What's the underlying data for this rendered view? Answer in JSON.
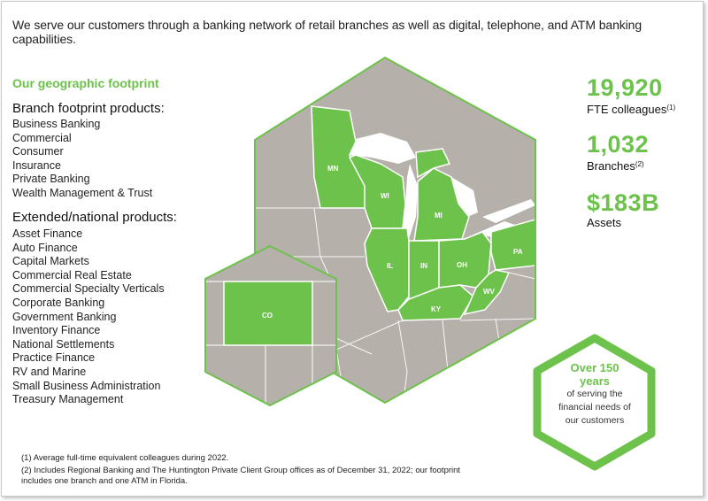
{
  "intro": "We serve our customers through a banking network of retail branches as well as digital, telephone, and ATM banking capabilities.",
  "footprint": {
    "title": "Our geographic footprint",
    "branch_heading": "Branch footprint products:",
    "branch_products": [
      "Business Banking",
      "Commercial",
      "Consumer",
      "Insurance",
      "Private Banking",
      "Wealth Management & Trust"
    ],
    "extended_heading": "Extended/national products:",
    "extended_products": [
      "Asset Finance",
      "Auto Finance",
      "Capital Markets",
      "Commercial Real Estate",
      "Commercial Specialty Verticals",
      "Corporate Banking",
      "Government Banking",
      "Inventory Finance",
      "National Settlements",
      "Practice Finance",
      "RV and Marine",
      "Small Business Administration",
      "Treasury Management"
    ]
  },
  "states": {
    "mn": "MN",
    "wi": "WI",
    "mi": "MI",
    "il": "IL",
    "in": "IN",
    "oh": "OH",
    "pa": "PA",
    "ky": "KY",
    "wv": "WV",
    "co": "CO"
  },
  "stats": [
    {
      "value": "19,920",
      "label": "FTE colleagues",
      "note": "(1)"
    },
    {
      "value": "1,032",
      "label": "Branches",
      "note": "(2)"
    },
    {
      "value": "$183B",
      "label": "Assets",
      "note": ""
    }
  ],
  "badge": {
    "line1": "Over 150",
    "line2": "years",
    "text1": "of serving the",
    "text2": "financial needs of",
    "text3": "our customers"
  },
  "footnotes": {
    "f1": "(1) Average full-time equivalent colleagues during 2022.",
    "f2a": "(2) Includes Regional Banking and The Huntington Private Client Group offices as of December 31, 2022; our footprint",
    "f2b": "includes one branch and one ATM in Florida."
  },
  "colors": {
    "brand_green": "#6cc24a",
    "map_gray": "#b5b0aa",
    "state_line": "#ffffff"
  }
}
